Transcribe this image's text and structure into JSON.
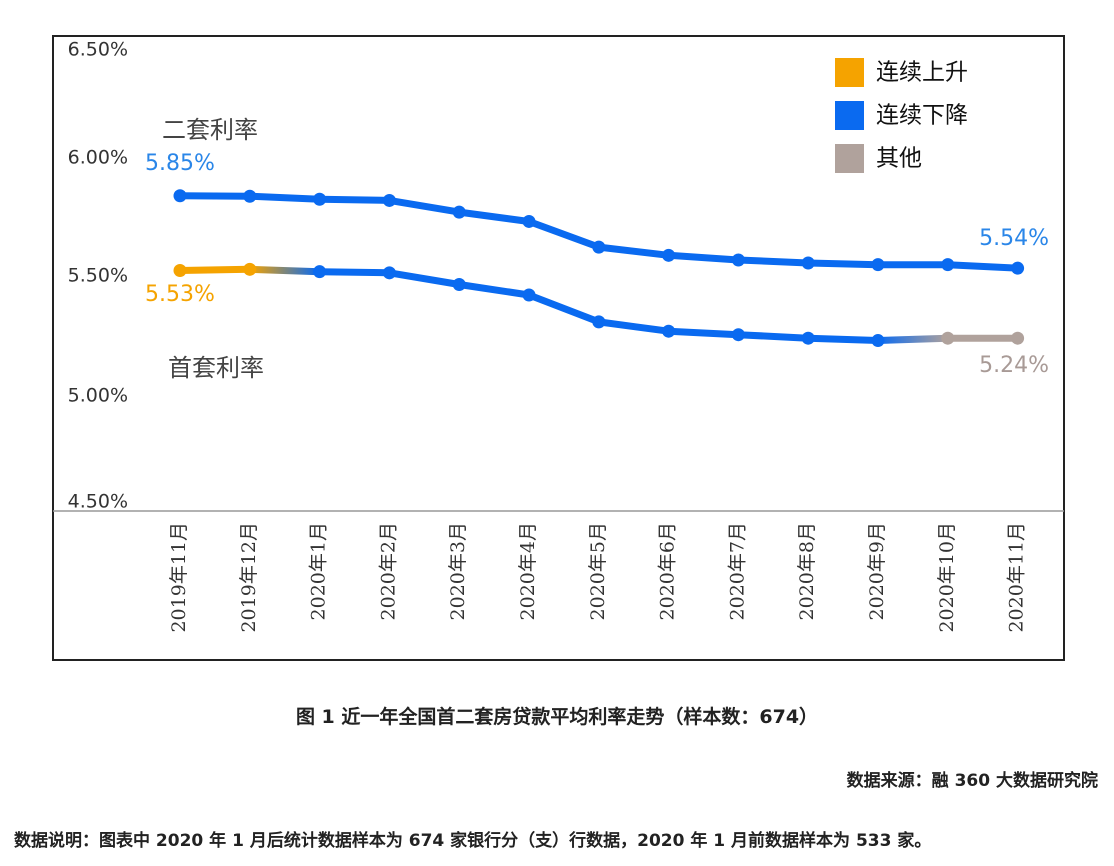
{
  "chart_data": {
    "type": "line",
    "categories": [
      "2019年11月",
      "2019年12月",
      "2020年1月",
      "2020年2月",
      "2020年3月",
      "2020年4月",
      "2020年5月",
      "2020年6月",
      "2020年7月",
      "2020年8月",
      "2020年9月",
      "2020年10月",
      "2020年11月"
    ],
    "y_ticks": [
      "6.50%",
      "6.00%",
      "5.50%",
      "5.00%",
      "4.50%"
    ],
    "ylim": [
      4.5,
      6.5
    ],
    "series": [
      {
        "name": "二套利率",
        "values": [
          5.85,
          5.848,
          5.835,
          5.83,
          5.78,
          5.74,
          5.63,
          5.595,
          5.575,
          5.562,
          5.555,
          5.555,
          5.54
        ]
      },
      {
        "name": "首套利率",
        "values": [
          5.53,
          5.535,
          5.525,
          5.52,
          5.47,
          5.425,
          5.31,
          5.27,
          5.255,
          5.24,
          5.23,
          5.24,
          5.24
        ]
      }
    ],
    "series_titles": {
      "second": "二套利率",
      "first": "首套利率"
    },
    "data_labels": {
      "second_start": "5.85%",
      "second_end": "5.54%",
      "first_start": "5.53%",
      "first_end": "5.24%"
    },
    "legend": [
      {
        "label": "连续上升",
        "color": "#f5a300"
      },
      {
        "label": "连续下降",
        "color": "#0a6af0"
      },
      {
        "label": "其他",
        "color": "#b0a29c"
      }
    ],
    "legend_position": "top-right",
    "colors": {
      "rising": "#f5a300",
      "falling": "#0a6af0",
      "other": "#b0a29c",
      "label_blue": "#2a86e8",
      "label_orange": "#f5a300",
      "label_gray": "#a89a96"
    },
    "grid": false
  },
  "caption": "图 1 近一年全国首二套房贷款平均利率走势（样本数：674）",
  "source": "数据来源：融 360 大数据研究院",
  "note": "数据说明：图表中 2020 年 1 月后统计数据样本为 674 家银行分（支）行数据，2020 年 1 月前数据样本为 533 家。"
}
